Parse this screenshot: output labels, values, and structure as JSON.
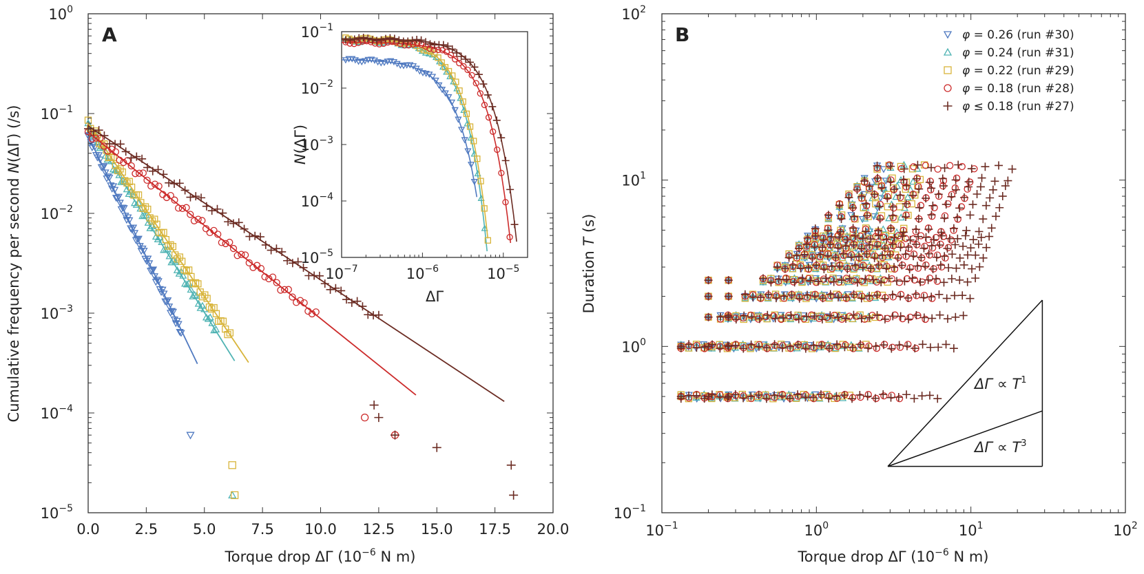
{
  "chart_data": [
    {
      "panel": "A",
      "type": "scatter",
      "xlabel": "Torque drop ΔΓ (10⁻⁶ N m)",
      "ylabel": "Cumulative frequency per second N(ΔΓ) (/s)",
      "xlim": [
        0,
        20
      ],
      "ylim_log10": [
        -5,
        0
      ],
      "yscale": "log",
      "x_ticks": [
        0,
        2.5,
        5,
        7.5,
        10,
        12.5,
        15,
        17.5,
        20
      ],
      "x_tick_labels": [
        "0.0",
        "2.5",
        "5.0",
        "7.5",
        "10.0",
        "12.5",
        "15.0",
        "17.5",
        "20.0"
      ],
      "y_tick_exponents": [
        0,
        -1,
        -2,
        -3,
        -4,
        -5
      ],
      "series": [
        {
          "name": "φ = 0.26 (run #30)",
          "color": "#4f79c0",
          "marker": "triangle-down",
          "n0": 0.06,
          "decay_per_unit": 1.13,
          "x_max": 4.0,
          "outliers": [
            [
              4.4,
              6e-05
            ]
          ],
          "fit": {
            "n0": 0.06,
            "decay_per_unit": 1.12,
            "x_end": 4.7
          }
        },
        {
          "name": "φ = 0.24 (run #31)",
          "color": "#4fb3b3",
          "marker": "triangle-up",
          "n0": 0.075,
          "decay_per_unit": 0.855,
          "x_max": 5.5,
          "outliers": [
            [
              6.2,
              1.5e-05
            ]
          ],
          "fit": {
            "n0": 0.075,
            "decay_per_unit": 0.86,
            "x_end": 6.3
          }
        },
        {
          "name": "φ = 0.22 (run #29)",
          "color": "#d8b43a",
          "marker": "square",
          "n0": 0.08,
          "decay_per_unit": 0.8,
          "x_max": 6.1,
          "outliers": [
            [
              6.2,
              3e-05
            ],
            [
              6.3,
              1.5e-05
            ]
          ],
          "fit": {
            "n0": 0.08,
            "decay_per_unit": 0.8,
            "x_end": 6.9
          }
        },
        {
          "name": "φ = 0.18 (run #28)",
          "color": "#cc2a2a",
          "marker": "circle",
          "n0": 0.065,
          "decay_per_unit": 0.43,
          "x_max": 9.8,
          "outliers": [
            [
              11.9,
              9e-05
            ],
            [
              13.2,
              6e-05
            ]
          ],
          "fit": {
            "n0": 0.065,
            "decay_per_unit": 0.43,
            "x_end": 14.1
          }
        },
        {
          "name": "φ ≤ 0.18 (run #27)",
          "color": "#6b2b22",
          "marker": "plus",
          "n0": 0.075,
          "decay_per_unit": 0.355,
          "x_max": 12.5,
          "outliers": [
            [
              12.3,
              0.00012
            ],
            [
              12.5,
              9e-05
            ],
            [
              13.2,
              6e-05
            ],
            [
              15.0,
              4.5e-05
            ],
            [
              18.2,
              3e-05
            ],
            [
              18.3,
              1.5e-05
            ]
          ],
          "fit": {
            "n0": 0.075,
            "decay_per_unit": 0.355,
            "x_end": 17.9
          }
        }
      ],
      "inset": {
        "type": "line",
        "xlabel": "ΔΓ",
        "ylabel": "N(ΔΓ)",
        "xscale": "log",
        "yscale": "log",
        "xlim_log10": [
          -7,
          -4.7
        ],
        "ylim_log10": [
          -5,
          -1
        ],
        "x_tick_exponents": [
          -7,
          -6,
          -5
        ],
        "y_tick_exponents": [
          -1,
          -2,
          -3,
          -4,
          -5
        ],
        "series_fits": [
          {
            "color": "#4f79c0",
            "n0": 0.032,
            "xc": 1.6e-06,
            "cut": 1.0,
            "x_end": 4.7e-06
          },
          {
            "color": "#4fb3b3",
            "n0": 0.07,
            "xc": 1.75e-06,
            "cut": 1.05,
            "x_end": 6.3e-06
          },
          {
            "color": "#d8b43a",
            "n0": 0.075,
            "xc": 1.8e-06,
            "cut": 1.03,
            "x_end": 6.9e-06
          },
          {
            "color": "#cc2a2a",
            "n0": 0.065,
            "xc": 3.3e-06,
            "cut": 1.0,
            "x_end": 1.45e-05
          },
          {
            "color": "#6b2b22",
            "n0": 0.075,
            "xc": 3.9e-06,
            "cut": 1.0,
            "x_end": 1.9e-05
          }
        ]
      }
    },
    {
      "panel": "B",
      "type": "scatter",
      "xlabel": "Torque drop ΔΓ (10⁻⁶ N m)",
      "ylabel": "Duration T (s)",
      "xscale": "log",
      "yscale": "log",
      "xlim_log10": [
        -1,
        2
      ],
      "ylim_log10": [
        -1,
        2
      ],
      "x_tick_exponents": [
        -1,
        0,
        1,
        2
      ],
      "y_tick_exponents": [
        2,
        1,
        0,
        -1
      ],
      "duration_levels": [
        0.5,
        1.0,
        1.5,
        2.0,
        2.5,
        3.0,
        3.5,
        4.0,
        4.5,
        5,
        6,
        7,
        8,
        9,
        10,
        12
      ],
      "series": [
        {
          "name": "φ = 0.26 (run #30)",
          "color": "#4f79c0",
          "marker": "triangle-down",
          "max_dg": 3.0
        },
        {
          "name": "φ = 0.24 (run #31)",
          "color": "#4fb3b3",
          "marker": "triangle-up",
          "max_dg": 4.5
        },
        {
          "name": "φ = 0.22 (run #29)",
          "color": "#d8b43a",
          "marker": "square",
          "max_dg": 5.0
        },
        {
          "name": "φ = 0.18 (run #28)",
          "color": "#cc2a2a",
          "marker": "circle",
          "max_dg": 10.5
        },
        {
          "name": "φ ≤ 0.18 (run #27)",
          "color": "#6b2b22",
          "marker": "plus",
          "max_dg": 18.5
        }
      ],
      "guide_lines": [
        {
          "label": "ΔΓ ∝ T¹",
          "T_start": 0.19,
          "dg_start": 2.9,
          "exponent": 1,
          "dg_end": 29
        },
        {
          "label": "ΔΓ ∝ T³",
          "T_start": 0.19,
          "dg_start": 2.9,
          "exponent": 3,
          "dg_end": 29
        }
      ]
    }
  ],
  "labels": {
    "panel_a_letter": "A",
    "panel_b_letter": "B",
    "panel_a_xlabel": "Torque drop ΔΓ (10",
    "panel_a_xlabel_exp": "−6",
    "panel_a_xlabel_end": " N m)",
    "panel_a_ylabel_1": "Cumulative frequency per second ",
    "panel_a_ylabel_2": "N",
    "panel_a_ylabel_3": "(ΔΓ) (/s)",
    "inset_xlabel": "ΔΓ",
    "inset_ylabel_1": "N",
    "inset_ylabel_2": "(ΔΓ)",
    "panel_b_xlabel": "Torque drop ΔΓ (10",
    "panel_b_xlabel_exp": "−6",
    "panel_b_xlabel_end": " N m)",
    "panel_b_ylabel_1": "Duration ",
    "panel_b_ylabel_2": "T",
    "panel_b_ylabel_3": " (s)",
    "guide1_a": "ΔΓ",
    "guide1_b": " ∝ ",
    "guide1_c": "T",
    "guide1_exp": "1",
    "guide2_a": "ΔΓ",
    "guide2_b": " ∝ ",
    "guide2_c": "T",
    "guide2_exp": "3",
    "legend": [
      {
        "sym": "φ",
        "rest": " = 0.26 (run #30)"
      },
      {
        "sym": "φ",
        "rest": " = 0.24 (run #31)"
      },
      {
        "sym": "φ",
        "rest": " = 0.22 (run #29)"
      },
      {
        "sym": "φ",
        "rest": " = 0.18 (run #28)"
      },
      {
        "sym": "φ",
        "rest": " ≤ 0.18 (run #27)"
      }
    ]
  }
}
